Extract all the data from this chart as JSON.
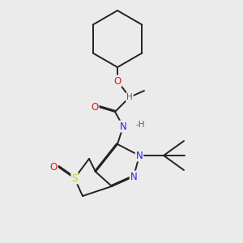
{
  "bg_color": "#ebebeb",
  "bond_color": "#222222",
  "bond_width": 1.4,
  "dbo": 0.012,
  "atom_colors": {
    "O": "#ee1111",
    "N": "#2222ee",
    "S": "#cccc00",
    "H_teal": "#227777",
    "C": "#222222"
  },
  "fs": 8.5,
  "fs_small": 7.5
}
